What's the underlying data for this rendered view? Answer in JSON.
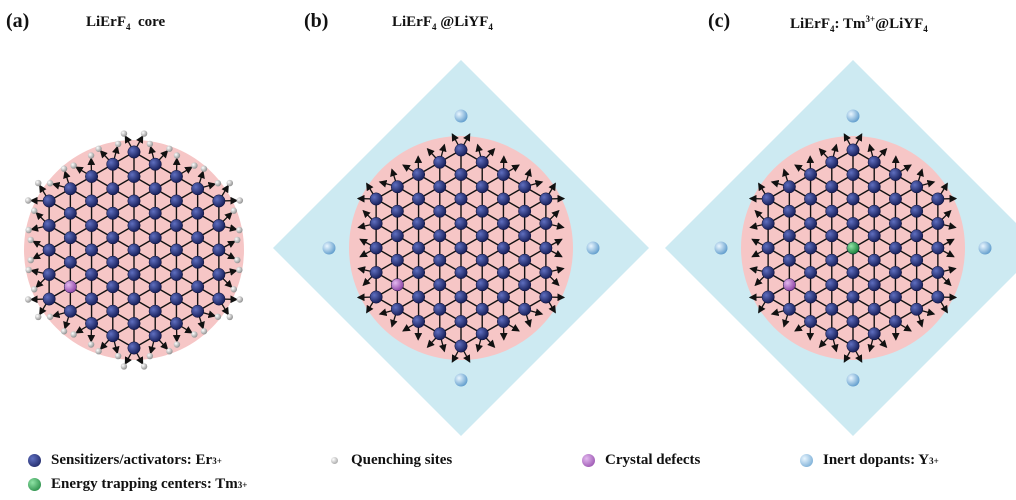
{
  "panels": [
    {
      "letter": "(a)",
      "title_main": "LiErF",
      "title_sub": "4",
      "title_rest": "  core"
    },
    {
      "letter": "(b)",
      "title_main": "LiErF",
      "title_sub": "4",
      "title_rest": " @LiYF",
      "title_sub2": "4"
    },
    {
      "letter": "(c)",
      "title_main": "LiErF",
      "title_sub": "4",
      "title_rest": ": Tm",
      "title_sup": "3+",
      "title_rest2": "@LiYF",
      "title_sub2": "4"
    }
  ],
  "legend": {
    "sensitizers": {
      "text": "Sensitizers/activators: Er",
      "sup": "3+"
    },
    "quenching": {
      "text": "Quenching sites"
    },
    "defects": {
      "text": "Crystal defects"
    },
    "inert": {
      "text": "Inert dopants: Y",
      "sup": "3+"
    },
    "trapping": {
      "text": "Energy trapping centers: Tm",
      "sup": "3+"
    }
  },
  "colors": {
    "core_fill": "#f6c6c6",
    "shell_fill": "#cdeaf2",
    "er_ion": "#1f2a6b",
    "defect_ion": "#a35fb8",
    "quench_site": "#aaaaaa",
    "y_ion": "#7fb6d9",
    "tm_ion": "#1f9a4a",
    "arrow": "#111111"
  }
}
